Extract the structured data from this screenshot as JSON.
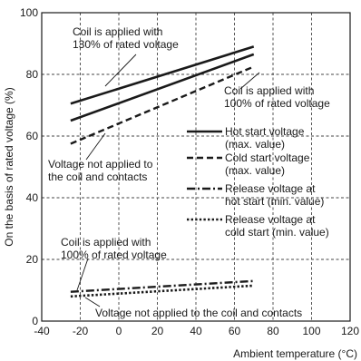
{
  "chart_data": {
    "type": "line",
    "xlabel": "Ambient temperature (°C)",
    "ylabel": "On the basis of rated voltage (%)",
    "xlim": [
      -40,
      120
    ],
    "ylim": [
      0,
      100
    ],
    "x_ticks": [
      "-40",
      "-20",
      "0",
      "20",
      "40",
      "60",
      "80",
      "100",
      "120"
    ],
    "y_ticks": [
      "0",
      "20",
      "40",
      "60",
      "80",
      "100"
    ],
    "grid": true,
    "series": [
      {
        "name": "Hot start voltage (max. value)",
        "line_style": "solid",
        "condition": "130% of rated voltage",
        "x": [
          -25,
          70
        ],
        "y": [
          70.5,
          89
        ]
      },
      {
        "name": "Hot start voltage (max. value)",
        "line_style": "solid",
        "condition": "100% of rated voltage",
        "x": [
          -25,
          70
        ],
        "y": [
          65,
          86.5
        ]
      },
      {
        "name": "Cold start voltage (max. value)",
        "line_style": "dashed",
        "condition": "not applied",
        "x": [
          -25,
          70
        ],
        "y": [
          57.5,
          82.5
        ]
      },
      {
        "name": "Release voltage at hot start (min. value)",
        "line_style": "dashdot",
        "condition": "100% of rated voltage",
        "x": [
          -25,
          70
        ],
        "y": [
          9.5,
          13
        ]
      },
      {
        "name": "Release voltage at cold start (min. value)",
        "line_style": "dotted",
        "condition": "not applied",
        "x": [
          -25,
          70
        ],
        "y": [
          8,
          11.5
        ]
      }
    ],
    "annotations": [
      {
        "lines": [
          "Coil is applied with",
          "130% of rated voltage"
        ]
      },
      {
        "lines": [
          "Coil is applied with",
          "100% of rated voltage"
        ]
      },
      {
        "lines": [
          "Voltage not applied to",
          "the coil and contacts"
        ]
      },
      {
        "lines": [
          "Coil is applied with",
          "100% of rated voltage"
        ]
      },
      {
        "lines": [
          "Voltage not applied to the coil and contacts"
        ]
      }
    ],
    "legend": {
      "position": "right",
      "entries": [
        {
          "lines": [
            "Hot start voltage",
            "(max. value)"
          ],
          "style": "solid"
        },
        {
          "lines": [
            "Cold start voltage",
            "(max. value)"
          ],
          "style": "dashed"
        },
        {
          "lines": [
            "Release voltage at",
            "hot start (min. value)"
          ],
          "style": "dashdot"
        },
        {
          "lines": [
            "Release voltage at",
            "cold start (min. value)"
          ],
          "style": "dotted"
        }
      ]
    },
    "colors": {
      "ink": "#1a1a1a",
      "grid": "#444444"
    }
  }
}
